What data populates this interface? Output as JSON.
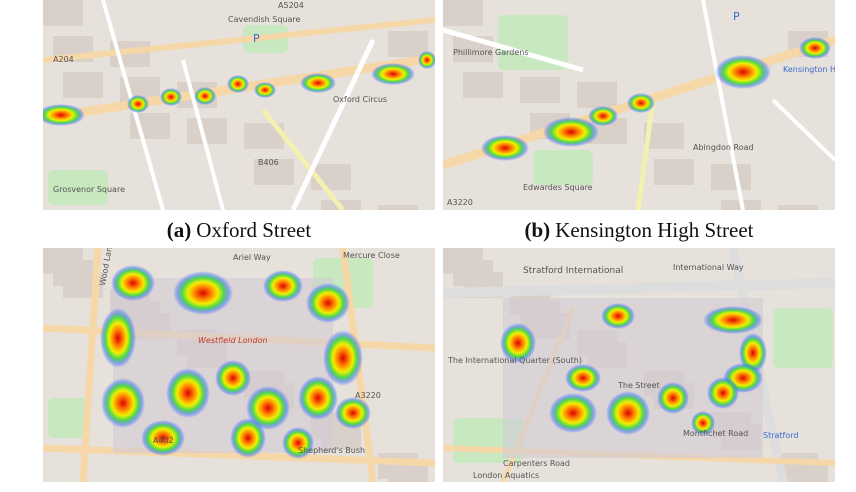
{
  "panels": [
    {
      "tag": "(a)",
      "caption": "Oxford Street",
      "labels": [
        "A204",
        "A5204",
        "Cavendish Square",
        "B406",
        "Oxford Circus",
        "Grosvenor Square",
        "P"
      ]
    },
    {
      "tag": "(b)",
      "caption": "Kensington High Street",
      "labels": [
        "Kensington High Street",
        "Edwardes Square",
        "Abingdon Road",
        "A3220",
        "Phillimore Gardens",
        "P"
      ]
    },
    {
      "labels": [
        "Wood Lane",
        "Ariel Way",
        "Westfield London",
        "A3220",
        "A402",
        "Shepherd's Bush",
        "Mercure Close"
      ]
    },
    {
      "labels": [
        "Stratford International",
        "International Way",
        "The International Quarter (South)",
        "The Street",
        "Stratford",
        "Carpenters Road",
        "London Aquatics",
        "Montfichet Road"
      ]
    }
  ]
}
